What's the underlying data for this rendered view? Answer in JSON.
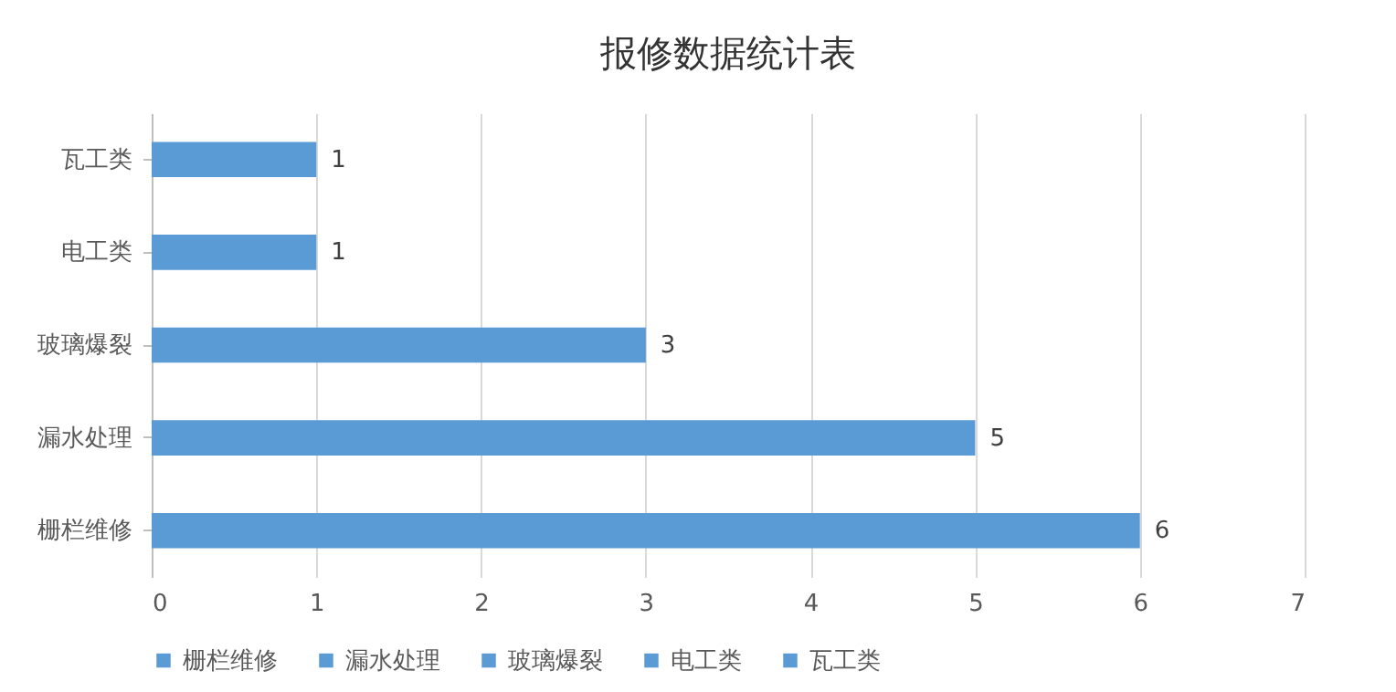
{
  "chart_data": {
    "type": "bar",
    "orientation": "horizontal",
    "title": "报修数据统计表",
    "categories": [
      "瓦工类",
      "电工类",
      "玻璃爆裂",
      "漏水处理",
      "栅栏维修"
    ],
    "series": [
      {
        "name": "栅栏维修",
        "color": "#5b9bd5",
        "values": [
          null,
          null,
          null,
          null,
          6
        ]
      },
      {
        "name": "漏水处理",
        "color": "#5b9bd5",
        "values": [
          null,
          null,
          null,
          5,
          null
        ]
      },
      {
        "name": "玻璃爆裂",
        "color": "#5b9bd5",
        "values": [
          null,
          null,
          3,
          null,
          null
        ]
      },
      {
        "name": "电工类",
        "color": "#5b9bd5",
        "values": [
          null,
          1,
          null,
          null,
          null
        ]
      },
      {
        "name": "瓦工类",
        "color": "#5b9bd5",
        "values": [
          1,
          null,
          null,
          null,
          null
        ]
      }
    ],
    "xlim": [
      0,
      7
    ],
    "xticks": [
      0,
      1,
      2,
      3,
      4,
      5,
      6,
      7
    ],
    "grid": "x",
    "legend": "bottom",
    "data_labels": true
  }
}
